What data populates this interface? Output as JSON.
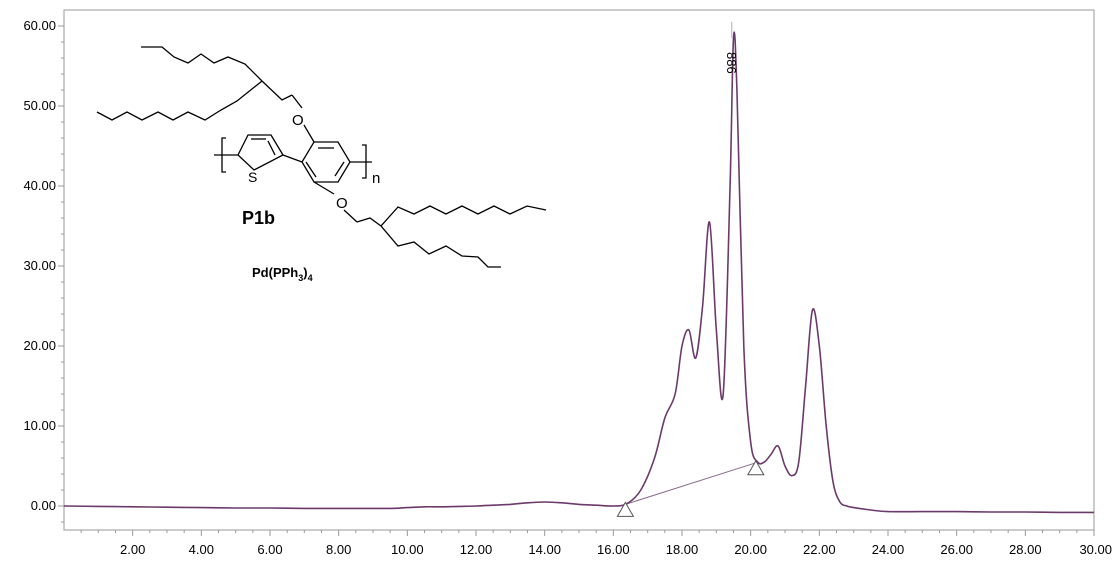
{
  "chart_data": {
    "type": "line",
    "title": "",
    "xlabel": "",
    "ylabel": "",
    "xlim": [
      0,
      30
    ],
    "ylim": [
      -3,
      62
    ],
    "x_ticks": [
      "2.00",
      "4.00",
      "6.00",
      "8.00",
      "10.00",
      "12.00",
      "14.00",
      "16.00",
      "18.00",
      "20.00",
      "22.00",
      "24.00",
      "26.00",
      "28.00",
      "30.00"
    ],
    "y_ticks": [
      "0.00",
      "10.00",
      "20.00",
      "30.00",
      "40.00",
      "50.00",
      "60.00"
    ],
    "grid": false,
    "legend": "none",
    "series_color": "#6b3a6b",
    "series": [
      {
        "x": [
          0,
          1,
          2,
          3,
          4,
          5,
          6,
          7,
          8,
          9,
          9.5,
          10,
          10.5,
          11,
          11.5,
          12,
          12.5,
          13,
          13.5,
          14,
          14.5,
          15,
          15.5,
          16,
          16.4,
          16.8,
          17.2,
          17.5,
          17.8,
          18.0,
          18.2,
          18.4,
          18.6,
          18.8,
          19.0,
          19.2,
          19.4,
          19.5,
          19.6,
          19.8,
          20.0,
          20.2,
          20.4,
          20.6,
          20.8,
          21.0,
          21.2,
          21.4,
          21.6,
          21.8,
          22.0,
          22.2,
          22.4,
          22.6,
          22.8,
          23.0,
          23.5,
          24,
          25,
          26,
          27,
          28,
          29,
          30
        ],
        "y": [
          0.0,
          -0.05,
          -0.1,
          -0.15,
          -0.2,
          -0.25,
          -0.25,
          -0.3,
          -0.3,
          -0.3,
          -0.3,
          -0.2,
          -0.1,
          -0.1,
          -0.05,
          0.0,
          0.1,
          0.2,
          0.4,
          0.5,
          0.4,
          0.2,
          0.1,
          0.0,
          0.3,
          2.0,
          6.0,
          11.0,
          14.0,
          20.0,
          22.0,
          18.5,
          25.0,
          35.5,
          22.0,
          14.0,
          40.0,
          58.5,
          52.0,
          20.0,
          8.0,
          5.5,
          5.5,
          6.5,
          7.5,
          5.0,
          3.8,
          5.5,
          15.0,
          24.5,
          20.0,
          10.0,
          3.0,
          0.5,
          0.0,
          -0.2,
          -0.5,
          -0.7,
          -0.7,
          -0.7,
          -0.75,
          -0.75,
          -0.8,
          -0.8
        ]
      }
    ],
    "annotations": [
      {
        "text": "886",
        "x": 19.45,
        "rotation": 90
      },
      {
        "type": "baseline",
        "from": [
          16.35,
          0.2
        ],
        "to": [
          20.15,
          5.4
        ]
      },
      {
        "type": "triangle-marker",
        "x": 16.35
      },
      {
        "type": "triangle-marker",
        "x": 20.15
      }
    ],
    "peak_line_x": 19.45
  },
  "inset": {
    "compound_label": "P1b",
    "catalyst_label": "Pd(PPh",
    "catalyst_sub_3": "3",
    "catalyst_close": ")",
    "catalyst_sub_4": "4",
    "atom_o_top": "O",
    "atom_o_bottom": "O",
    "atom_s": "S",
    "repeat_n": "n"
  }
}
